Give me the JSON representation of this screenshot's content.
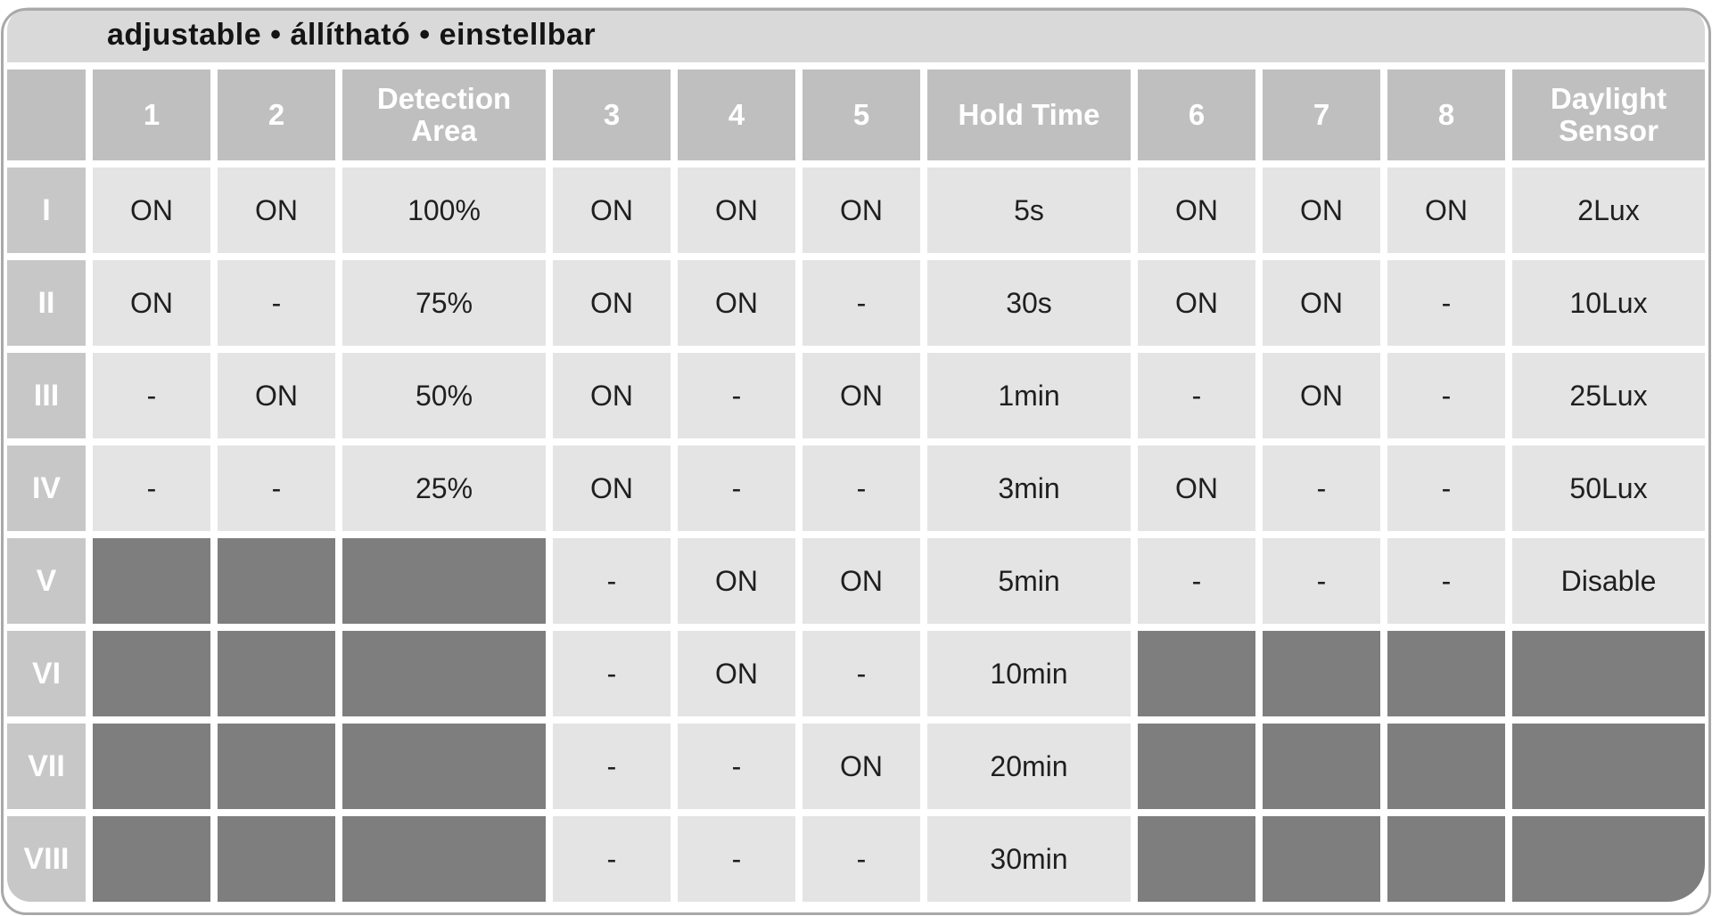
{
  "banner": {
    "text": "adjustable • állítható • einstellbar"
  },
  "table": {
    "header_columns": [
      "",
      "1",
      "2",
      "Detection Area",
      "3",
      "4",
      "5",
      "Hold Time",
      "6",
      "7",
      "8",
      "Daylight Sensor"
    ],
    "rows": [
      {
        "label": "I",
        "cells": [
          "ON",
          "ON",
          "100%",
          "ON",
          "ON",
          "ON",
          "5s",
          "ON",
          "ON",
          "ON",
          "2Lux"
        ]
      },
      {
        "label": "II",
        "cells": [
          "ON",
          "-",
          "75%",
          "ON",
          "ON",
          "-",
          "30s",
          "ON",
          "ON",
          "-",
          "10Lux"
        ]
      },
      {
        "label": "III",
        "cells": [
          "-",
          "ON",
          "50%",
          "ON",
          "-",
          "ON",
          "1min",
          "-",
          "ON",
          "-",
          "25Lux"
        ]
      },
      {
        "label": "IV",
        "cells": [
          "-",
          "-",
          "25%",
          "ON",
          "-",
          "-",
          "3min",
          "ON",
          "-",
          "-",
          "50Lux"
        ]
      },
      {
        "label": "V",
        "cells": [
          null,
          null,
          null,
          "-",
          "ON",
          "ON",
          "5min",
          "-",
          "-",
          "-",
          "Disable"
        ]
      },
      {
        "label": "VI",
        "cells": [
          null,
          null,
          null,
          "-",
          "ON",
          "-",
          "10min",
          null,
          null,
          null,
          null
        ]
      },
      {
        "label": "VII",
        "cells": [
          null,
          null,
          null,
          "-",
          "-",
          "ON",
          "20min",
          null,
          null,
          null,
          null
        ]
      },
      {
        "label": "VIII",
        "cells": [
          null,
          null,
          null,
          "-",
          "-",
          "-",
          "30min",
          null,
          null,
          null,
          null
        ]
      }
    ]
  },
  "colors": {
    "banner_bg": "#d9d9d9",
    "header_bg": "#bfbfbf",
    "row_label_bg": "#c7c7c7",
    "cell_bg": "#e4e4e4",
    "disabled_cell_bg": "#7e7e7e",
    "header_text": "#ffffff",
    "cell_text": "#1f1f1f",
    "frame_border": "#a9a9a9"
  }
}
